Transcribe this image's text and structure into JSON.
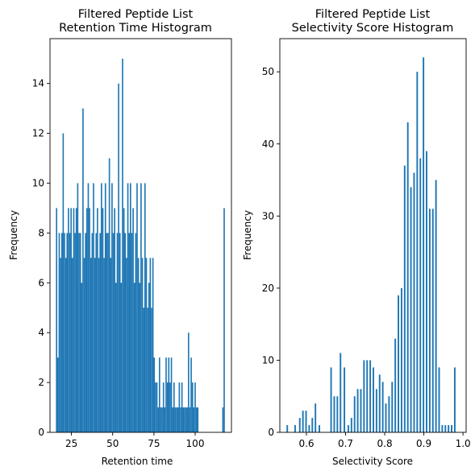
{
  "chart_data": [
    {
      "type": "bar",
      "title_lines": [
        "Filtered Peptide List",
        "Retention Time Histogram"
      ],
      "xlabel": "Retention time",
      "ylabel": "Frequency",
      "xlim": [
        12,
        122
      ],
      "ylim": [
        0,
        15.8
      ],
      "xticks": [
        25,
        50,
        75,
        100
      ],
      "xtick_labels": [
        "25",
        "50",
        "75",
        "100"
      ],
      "yticks": [
        0,
        2,
        4,
        6,
        8,
        10,
        12,
        14
      ],
      "ytick_labels": [
        "0",
        "2",
        "4",
        "6",
        "8",
        "10",
        "12",
        "14"
      ],
      "color": "#1f77b4",
      "bar_width": 0.8,
      "x": [
        16.0,
        16.8,
        17.6,
        18.4,
        19.2,
        20.0,
        20.8,
        21.6,
        22.4,
        23.2,
        24.0,
        24.8,
        25.6,
        26.4,
        27.2,
        28.0,
        28.8,
        29.6,
        30.4,
        31.2,
        32.0,
        32.8,
        33.6,
        34.4,
        35.2,
        36.0,
        36.8,
        37.6,
        38.4,
        39.2,
        40.0,
        40.8,
        41.6,
        42.4,
        43.2,
        44.0,
        44.8,
        45.6,
        46.4,
        47.2,
        48.0,
        48.8,
        49.6,
        50.4,
        51.2,
        52.0,
        52.8,
        53.6,
        54.4,
        55.2,
        56.0,
        56.8,
        57.6,
        58.4,
        59.2,
        60.0,
        60.8,
        61.6,
        62.4,
        63.2,
        64.0,
        64.8,
        65.6,
        66.4,
        67.2,
        68.0,
        68.8,
        69.6,
        70.4,
        71.2,
        72.0,
        72.8,
        73.6,
        74.4,
        75.2,
        76.0,
        76.8,
        77.6,
        78.4,
        79.2,
        80.0,
        80.8,
        81.6,
        82.4,
        83.2,
        84.0,
        84.8,
        85.6,
        86.4,
        87.2,
        88.0,
        88.8,
        89.6,
        90.4,
        91.2,
        92.0,
        92.8,
        93.6,
        94.4,
        95.2,
        96.0,
        96.8,
        97.6,
        98.4,
        99.2,
        100.0,
        100.8,
        101.6,
        116.8,
        117.6
      ],
      "values": [
        9,
        3,
        8,
        7,
        8,
        12,
        8,
        7,
        8,
        9,
        8,
        9,
        7,
        9,
        8,
        9,
        10,
        8,
        8,
        6,
        13,
        7,
        8,
        9,
        10,
        9,
        7,
        8,
        10,
        7,
        8,
        9,
        7,
        8,
        10,
        9,
        7,
        10,
        8,
        8,
        11,
        7,
        10,
        8,
        9,
        6,
        8,
        14,
        8,
        6,
        15,
        9,
        8,
        7,
        10,
        8,
        10,
        8,
        9,
        6,
        8,
        10,
        7,
        6,
        10,
        7,
        5,
        10,
        7,
        5,
        6,
        7,
        5,
        7,
        3,
        2,
        2,
        1,
        3,
        1,
        1,
        2,
        1,
        3,
        2,
        3,
        2,
        3,
        1,
        2,
        1,
        1,
        1,
        2,
        1,
        2,
        1,
        1,
        1,
        1,
        4,
        1,
        3,
        2,
        1,
        2,
        1,
        1,
        1,
        9
      ]
    },
    {
      "type": "bar",
      "title_lines": [
        "Filtered Peptide List",
        "Selectivity Score Histogram"
      ],
      "xlabel": "Selectivity Score",
      "ylabel": "Frequency",
      "xlim": [
        0.532,
        1.008
      ],
      "ylim": [
        0,
        54.6
      ],
      "xticks": [
        0.6,
        0.7,
        0.8,
        0.9,
        1.0
      ],
      "xtick_labels": [
        "0.6",
        "0.7",
        "0.8",
        "0.9",
        "1.0"
      ],
      "yticks": [
        0,
        10,
        20,
        30,
        40,
        50
      ],
      "ytick_labels": [
        "0",
        "10",
        "20",
        "30",
        "40",
        "50"
      ],
      "color": "#1f77b4",
      "bar_width": 0.004,
      "x": [
        0.551,
        0.571,
        0.583,
        0.591,
        0.599,
        0.607,
        0.615,
        0.623,
        0.633,
        0.663,
        0.671,
        0.679,
        0.687,
        0.697,
        0.707,
        0.715,
        0.723,
        0.731,
        0.739,
        0.747,
        0.755,
        0.763,
        0.771,
        0.779,
        0.787,
        0.795,
        0.803,
        0.811,
        0.819,
        0.827,
        0.835,
        0.843,
        0.851,
        0.859,
        0.867,
        0.875,
        0.883,
        0.891,
        0.899,
        0.907,
        0.915,
        0.923,
        0.931,
        0.939,
        0.947,
        0.955,
        0.963,
        0.971,
        0.979
      ],
      "values": [
        1,
        1,
        2,
        3,
        3,
        1,
        2,
        4,
        1,
        9,
        5,
        5,
        11,
        9,
        1,
        2,
        5,
        6,
        6,
        10,
        10,
        10,
        9,
        6,
        8,
        7,
        4,
        5,
        7,
        13,
        19,
        20,
        37,
        43,
        34,
        36,
        50,
        38,
        52,
        39,
        31,
        31,
        35,
        9,
        1,
        1,
        1,
        1,
        9
      ]
    }
  ]
}
